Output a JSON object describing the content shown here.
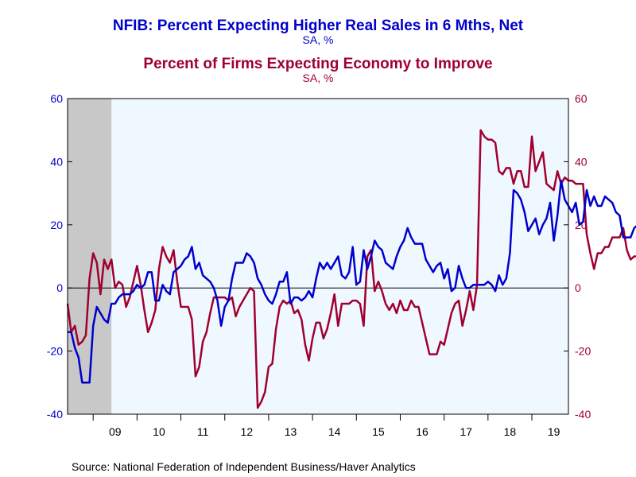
{
  "colors": {
    "series1": "#0000cc",
    "series2": "#a00030",
    "plot_bg": "#f0f8ff",
    "recession": "#c8c8c8",
    "axis": "#000000"
  },
  "chart_data": {
    "type": "line",
    "title": "NFIB: Percent Expecting Higher Real Sales in 6 Mths, Net",
    "title_unit": "SA, %",
    "subtitle": "Percent of Firms Expecting Economy to Improve",
    "subtitle_unit": "SA, %",
    "source": "Source:  National Federation of Independent Business/Haver Analytics",
    "x_range": [
      "2008-06",
      "2019-11"
    ],
    "x_tick_labels": [
      {
        "label": "09",
        "year": 2009
      },
      {
        "label": "10",
        "year": 2010
      },
      {
        "label": "11",
        "year": 2011
      },
      {
        "label": "12",
        "year": 2012
      },
      {
        "label": "13",
        "year": 2013
      },
      {
        "label": "14",
        "year": 2014
      },
      {
        "label": "15",
        "year": 2015
      },
      {
        "label": "16",
        "year": 2016
      },
      {
        "label": "17",
        "year": 2017
      },
      {
        "label": "18",
        "year": 2018
      },
      {
        "label": "19",
        "year": 2019
      }
    ],
    "y_left": {
      "ylim": [
        -40,
        60
      ],
      "ticks": [
        60,
        40,
        20,
        0,
        -20,
        -40
      ]
    },
    "y_right": {
      "ylim": [
        -40,
        60
      ],
      "ticks": [
        60,
        40,
        20,
        0,
        -20,
        -40
      ]
    },
    "recession_shading": {
      "start": "2008-06",
      "end": "2009-06"
    },
    "zero_line": true,
    "series": [
      {
        "name": "NFIB: Percent Expecting Higher Real Sales in 6 Mths, Net",
        "axis": "left",
        "start": "2008-06",
        "values": [
          -14,
          -14,
          -19,
          -22,
          -30,
          -30,
          -30,
          -12,
          -6,
          -8,
          -10,
          -11,
          -5,
          -5,
          -3,
          -2,
          -2,
          -2,
          -1,
          1,
          0,
          1,
          5,
          5,
          -4,
          -4,
          1,
          -1,
          -2,
          5,
          6,
          7,
          9,
          10,
          13,
          6,
          8,
          4,
          3,
          2,
          0,
          -4,
          -12,
          -6,
          -4,
          3,
          8,
          8,
          8,
          11,
          10,
          8,
          3,
          1,
          -2,
          -4,
          -5,
          -2,
          2,
          2,
          5,
          -5,
          -3,
          -3,
          -4,
          -3,
          -1,
          -3,
          3,
          8,
          6,
          8,
          6,
          8,
          10,
          4,
          3,
          5,
          13,
          1,
          2,
          12,
          6,
          10,
          15,
          13,
          12,
          8,
          7,
          6,
          10,
          13,
          15,
          19,
          16,
          14,
          14,
          14,
          9,
          7,
          5,
          7,
          8,
          3,
          6,
          -1,
          0,
          7,
          3,
          0,
          0,
          1,
          1,
          1,
          1,
          2,
          1,
          -1,
          4,
          1,
          3,
          11,
          31,
          30,
          28,
          24,
          18,
          20,
          22,
          17,
          20,
          22,
          27,
          15,
          23,
          34,
          28,
          26,
          24,
          27,
          20,
          21,
          31,
          26,
          29,
          26,
          26,
          29,
          28,
          27,
          24,
          23,
          16,
          16,
          16,
          19,
          20,
          23,
          17,
          16,
          22,
          17,
          16,
          17,
          17
        ]
      },
      {
        "name": "Percent of Firms Expecting Economy to Improve",
        "axis": "right",
        "start": "2008-06",
        "values": [
          -5,
          -14,
          -12,
          -18,
          -17,
          -15,
          3,
          11,
          8,
          -2,
          9,
          6,
          9,
          0,
          2,
          1,
          -6,
          -3,
          2,
          7,
          1,
          -7,
          -14,
          -11,
          -7,
          6,
          13,
          10,
          8,
          12,
          2,
          -6,
          -6,
          -6,
          -10,
          -28,
          -25,
          -17,
          -14,
          -8,
          -3,
          -3,
          -3,
          -3,
          -4,
          -3,
          -9,
          -6,
          -4,
          -2,
          0,
          -1,
          -38,
          -36,
          -33,
          -25,
          -24,
          -13,
          -6,
          -4,
          -5,
          -4,
          -8,
          -7,
          -10,
          -18,
          -23,
          -16,
          -11,
          -11,
          -16,
          -13,
          -8,
          -2,
          -12,
          -5,
          -5,
          -5,
          -4,
          -4,
          -5,
          -12,
          10,
          12,
          -1,
          2,
          -1,
          -5,
          -7,
          -5,
          -8,
          -4,
          -7,
          -7,
          -4,
          -6,
          -6,
          -11,
          -16,
          -21,
          -21,
          -21,
          -17,
          -18,
          -13,
          -8,
          -5,
          -4,
          -12,
          -7,
          -1,
          -7,
          1,
          50,
          48,
          47,
          47,
          46,
          37,
          36,
          38,
          38,
          33,
          37,
          37,
          32,
          32,
          48,
          37,
          40,
          43,
          33,
          32,
          31,
          37,
          33,
          35,
          34,
          34,
          33,
          33,
          33,
          17,
          11,
          6,
          11,
          11,
          13,
          13,
          16,
          16,
          16,
          19,
          12,
          9,
          10,
          10
        ]
      }
    ]
  }
}
